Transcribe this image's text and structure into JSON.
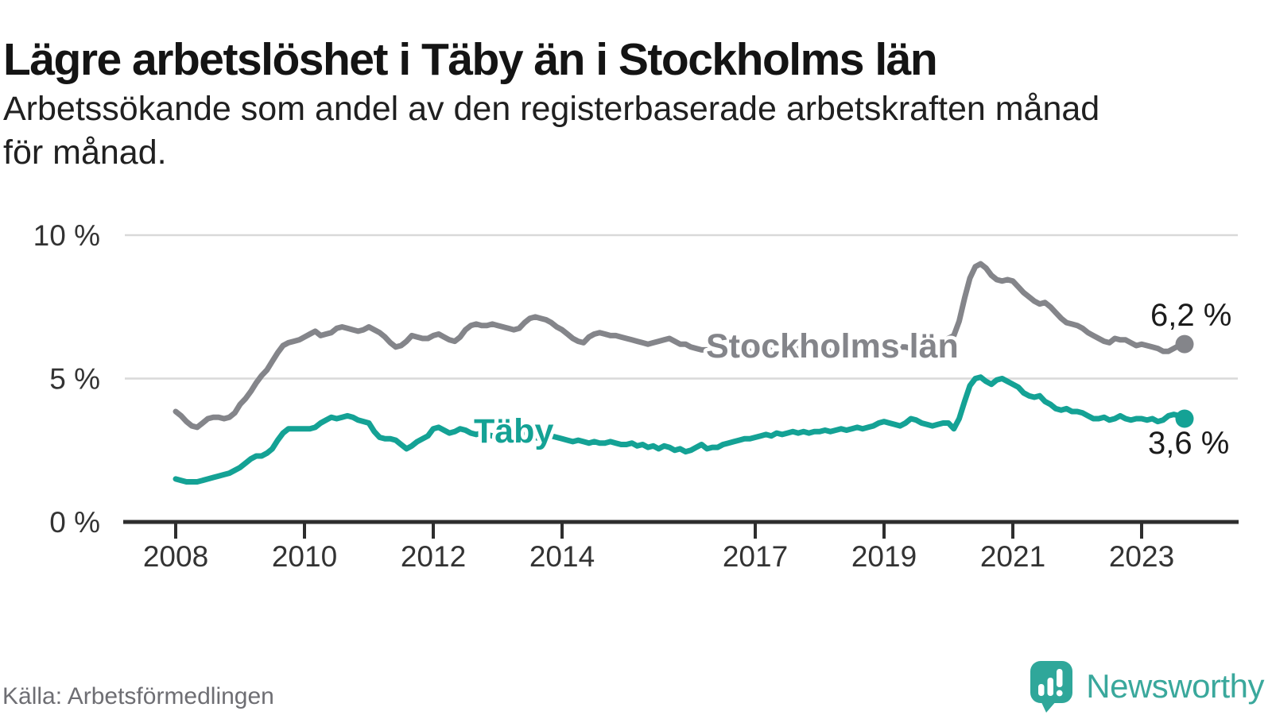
{
  "header": {
    "title": "Lägre arbetslöshet i Täby än i Stockholms län",
    "subtitle_line1": "Arbetssökande som andel av den registerbaserade arbetskraften månad",
    "subtitle_line2": "för månad."
  },
  "footer": {
    "source": "Källa: Arbetsförmedlingen",
    "brand": "Newsworthy"
  },
  "colors": {
    "stockholm_gray": "#84858a",
    "taby_teal": "#14a295",
    "axis": "#2e2e2e",
    "tick_label": "#333333",
    "gridline": "#d9d9d9",
    "annotation": "#1b1b1b",
    "logo_teal": "#2fa79a",
    "wordmark_teal": "#3aa89c"
  },
  "chart_data": {
    "type": "line",
    "title": "Lägre arbetslöshet i Täby än i Stockholms län",
    "subtitle": "Arbetssökande som andel av den registerbaserade arbetskraften månad för månad.",
    "frequency": "monthly",
    "x_start": "2008-01",
    "x_end": "2023-09",
    "x_ticks": [
      2008,
      2010,
      2012,
      2014,
      2017,
      2019,
      2021,
      2023
    ],
    "y_tick_values": [
      0,
      5,
      10
    ],
    "y_tick_labels": [
      "0 %",
      "5 %",
      "10 %"
    ],
    "ylim": [
      0,
      10.5
    ],
    "grid": "horizontal",
    "legend": "inline-labels",
    "series": [
      {
        "name": "Stockholms län",
        "color": "#84858a",
        "final_label": "6,2 %",
        "final_value": 6.2,
        "values": [
          3.85,
          3.7,
          3.5,
          3.35,
          3.3,
          3.45,
          3.6,
          3.65,
          3.65,
          3.6,
          3.65,
          3.8,
          4.1,
          4.3,
          4.55,
          4.85,
          5.1,
          5.3,
          5.6,
          5.9,
          6.15,
          6.25,
          6.3,
          6.35,
          6.45,
          6.55,
          6.65,
          6.5,
          6.55,
          6.6,
          6.75,
          6.8,
          6.75,
          6.7,
          6.65,
          6.7,
          6.8,
          6.7,
          6.6,
          6.45,
          6.25,
          6.1,
          6.15,
          6.3,
          6.5,
          6.45,
          6.4,
          6.4,
          6.5,
          6.55,
          6.45,
          6.35,
          6.3,
          6.45,
          6.7,
          6.85,
          6.9,
          6.85,
          6.85,
          6.9,
          6.85,
          6.8,
          6.75,
          6.7,
          6.75,
          6.95,
          7.1,
          7.15,
          7.1,
          7.05,
          6.95,
          6.8,
          6.7,
          6.55,
          6.4,
          6.3,
          6.25,
          6.45,
          6.55,
          6.6,
          6.55,
          6.5,
          6.5,
          6.45,
          6.4,
          6.35,
          6.3,
          6.25,
          6.2,
          6.25,
          6.3,
          6.35,
          6.4,
          6.3,
          6.2,
          6.2,
          6.1,
          6.05,
          6.0,
          6.0,
          6.05,
          6.0,
          5.95,
          6.0,
          6.0,
          5.95,
          5.9,
          5.95,
          5.95,
          5.9,
          5.95,
          6.0,
          5.95,
          6.0,
          6.05,
          6.0,
          6.05,
          6.0,
          6.0,
          6.05,
          6.0,
          6.0,
          5.95,
          6.0,
          6.05,
          6.0,
          6.05,
          6.1,
          6.05,
          6.1,
          6.1,
          6.05,
          6.0,
          6.05,
          6.05,
          6.1,
          6.1,
          6.05,
          6.1,
          6.1,
          6.15,
          6.2,
          6.25,
          6.3,
          6.4,
          6.5,
          7.0,
          7.8,
          8.5,
          8.9,
          9.0,
          8.85,
          8.6,
          8.45,
          8.4,
          8.45,
          8.4,
          8.2,
          8.0,
          7.85,
          7.7,
          7.6,
          7.65,
          7.5,
          7.3,
          7.1,
          6.95,
          6.9,
          6.85,
          6.75,
          6.6,
          6.5,
          6.4,
          6.3,
          6.25,
          6.4,
          6.35,
          6.35,
          6.25,
          6.15,
          6.2,
          6.15,
          6.1,
          6.05,
          5.95,
          5.95,
          6.05,
          6.15,
          6.2
        ]
      },
      {
        "name": "Täby",
        "color": "#14a295",
        "final_label": "3,6 %",
        "final_value": 3.6,
        "values": [
          1.5,
          1.45,
          1.4,
          1.4,
          1.4,
          1.45,
          1.5,
          1.55,
          1.6,
          1.65,
          1.7,
          1.8,
          1.9,
          2.05,
          2.2,
          2.3,
          2.3,
          2.4,
          2.55,
          2.85,
          3.1,
          3.25,
          3.25,
          3.25,
          3.25,
          3.25,
          3.3,
          3.45,
          3.55,
          3.65,
          3.6,
          3.65,
          3.7,
          3.65,
          3.55,
          3.5,
          3.45,
          3.15,
          2.95,
          2.9,
          2.9,
          2.85,
          2.7,
          2.55,
          2.65,
          2.8,
          2.9,
          3.0,
          3.25,
          3.3,
          3.2,
          3.1,
          3.15,
          3.25,
          3.2,
          3.1,
          3.05,
          3.1,
          3.05,
          3.0,
          3.0,
          3.05,
          3.0,
          2.95,
          3.0,
          3.05,
          3.0,
          2.95,
          2.9,
          2.95,
          3.0,
          2.95,
          2.9,
          2.85,
          2.8,
          2.85,
          2.8,
          2.75,
          2.8,
          2.75,
          2.75,
          2.8,
          2.75,
          2.7,
          2.7,
          2.75,
          2.65,
          2.7,
          2.6,
          2.65,
          2.55,
          2.65,
          2.6,
          2.5,
          2.55,
          2.45,
          2.5,
          2.6,
          2.7,
          2.55,
          2.6,
          2.6,
          2.7,
          2.75,
          2.8,
          2.85,
          2.9,
          2.9,
          2.95,
          3.0,
          3.05,
          3.0,
          3.1,
          3.05,
          3.1,
          3.15,
          3.1,
          3.15,
          3.1,
          3.15,
          3.15,
          3.2,
          3.15,
          3.2,
          3.25,
          3.2,
          3.25,
          3.3,
          3.25,
          3.3,
          3.35,
          3.45,
          3.5,
          3.45,
          3.4,
          3.35,
          3.45,
          3.6,
          3.55,
          3.45,
          3.4,
          3.35,
          3.4,
          3.45,
          3.45,
          3.25,
          3.6,
          4.2,
          4.75,
          5.0,
          5.05,
          4.9,
          4.8,
          4.95,
          5.0,
          4.9,
          4.8,
          4.7,
          4.5,
          4.4,
          4.35,
          4.4,
          4.2,
          4.1,
          3.95,
          3.9,
          3.95,
          3.85,
          3.85,
          3.8,
          3.7,
          3.6,
          3.6,
          3.65,
          3.55,
          3.6,
          3.7,
          3.6,
          3.55,
          3.6,
          3.6,
          3.55,
          3.6,
          3.5,
          3.55,
          3.7,
          3.75,
          3.7,
          3.6
        ]
      }
    ]
  }
}
